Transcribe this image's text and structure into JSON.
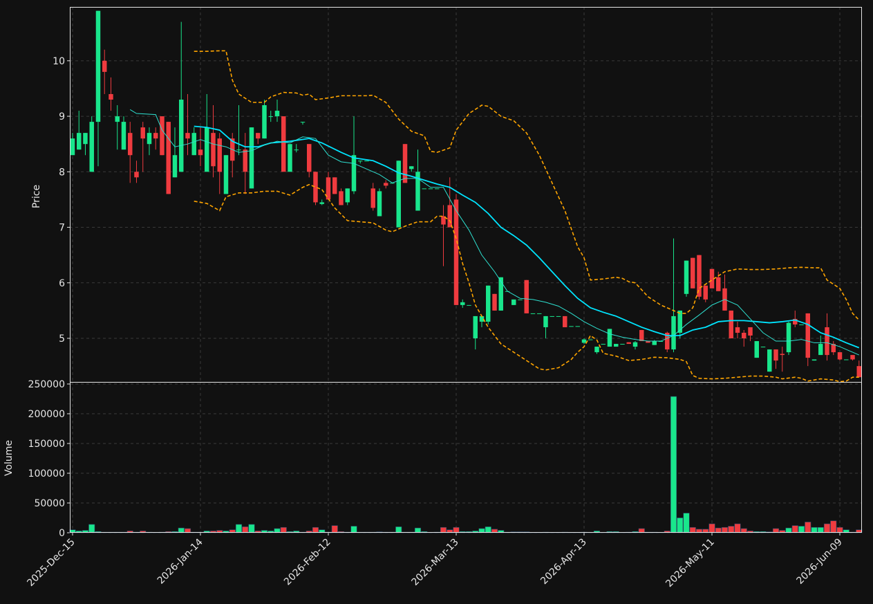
{
  "chart_data": [
    {
      "type": "candlestick",
      "ylabel": "Price",
      "up_color": "#19e68c",
      "down_color": "#ef3b3f",
      "open": [
        8.3,
        8.4,
        8.5,
        8.0,
        8.9,
        10.0,
        9.4,
        8.9,
        8.4,
        8.7,
        8.0,
        8.8,
        8.5,
        8.7,
        9.0,
        8.9,
        7.9,
        8.0,
        8.7,
        8.3,
        8.4,
        8.0,
        8.7,
        8.6,
        7.6,
        8.6,
        8.4,
        8.4,
        7.7,
        8.7,
        8.6,
        9.0,
        9.0,
        9.0,
        8.0,
        8.4,
        8.9,
        8.5,
        8.0,
        7.42,
        7.9,
        7.9,
        7.65,
        7.45,
        7.65,
        8.2,
        8.2,
        7.7,
        7.2,
        7.8,
        7.8,
        7.0,
        8.5,
        8.05,
        7.3,
        7.7,
        7.7,
        7.7,
        7.2,
        7.4,
        7.5,
        5.6,
        5.6,
        5.0,
        5.3,
        5.3,
        5.8,
        5.5,
        5.85,
        5.6,
        5.7,
        6.05,
        5.45,
        5.45,
        5.2,
        5.4,
        5.4,
        5.4,
        5.22,
        5.22,
        4.92,
        4.98,
        4.75,
        4.9,
        4.85,
        4.85,
        4.9,
        4.93,
        4.85,
        5.15,
        4.95,
        4.88,
        4.95,
        5.1,
        4.8,
        5.1,
        5.8,
        6.45,
        6.5,
        5.95,
        6.25,
        6.1,
        5.9,
        5.5,
        5.2,
        5.1,
        5.2,
        4.65,
        4.85,
        4.4,
        4.8,
        4.72,
        4.75,
        5.35,
        5.25,
        5.45,
        4.6,
        4.7,
        5.2,
        4.9,
        4.75,
        4.62,
        4.7,
        4.5
      ],
      "high": [
        8.7,
        9.1,
        8.7,
        9.0,
        10.9,
        10.2,
        9.7,
        9.2,
        9.0,
        8.9,
        8.2,
        8.9,
        8.8,
        8.8,
        9.0,
        8.9,
        8.8,
        10.7,
        9.4,
        8.8,
        8.8,
        9.4,
        9.2,
        8.7,
        8.3,
        8.7,
        9.2,
        8.7,
        8.8,
        8.7,
        9.3,
        9.1,
        9.3,
        9.0,
        8.5,
        8.5,
        8.9,
        8.5,
        8.0,
        7.5,
        8.0,
        7.9,
        7.7,
        7.7,
        9.0,
        8.2,
        8.2,
        7.8,
        7.7,
        7.85,
        7.8,
        8.2,
        8.5,
        8.1,
        8.4,
        7.7,
        7.7,
        7.7,
        7.4,
        7.9,
        7.6,
        5.7,
        5.6,
        5.4,
        5.4,
        5.95,
        5.8,
        6.1,
        5.85,
        5.7,
        5.7,
        6.05,
        5.45,
        5.45,
        5.4,
        5.4,
        5.4,
        5.4,
        5.22,
        5.22,
        5.0,
        4.98,
        4.85,
        4.9,
        5.17,
        4.9,
        4.9,
        4.93,
        4.95,
        5.15,
        4.95,
        4.97,
        4.95,
        5.12,
        6.8,
        5.5,
        6.4,
        6.45,
        6.5,
        5.95,
        6.25,
        6.2,
        6.15,
        5.5,
        5.3,
        5.15,
        5.2,
        4.95,
        4.85,
        4.8,
        4.8,
        4.85,
        5.3,
        5.5,
        5.25,
        5.45,
        4.62,
        5.05,
        5.45,
        4.95,
        4.75,
        4.62,
        4.7,
        4.6
      ],
      "low": [
        8.3,
        8.4,
        8.3,
        8.0,
        8.1,
        9.4,
        9.1,
        8.4,
        8.4,
        7.8,
        7.8,
        8.0,
        8.3,
        8.4,
        8.3,
        7.6,
        7.9,
        8.0,
        8.3,
        8.3,
        8.1,
        8.0,
        7.9,
        7.6,
        7.6,
        7.9,
        8.3,
        7.6,
        7.7,
        8.5,
        8.6,
        8.9,
        8.9,
        8.0,
        8.0,
        8.35,
        8.85,
        7.9,
        7.4,
        7.4,
        7.5,
        7.6,
        7.4,
        7.4,
        7.6,
        8.15,
        8.2,
        7.3,
        7.2,
        7.7,
        7.8,
        7.0,
        7.8,
        8.0,
        7.3,
        7.7,
        7.7,
        7.7,
        6.3,
        7.0,
        5.6,
        5.55,
        5.6,
        4.8,
        5.2,
        5.25,
        5.5,
        5.5,
        5.85,
        5.6,
        5.7,
        5.45,
        5.45,
        5.45,
        5.0,
        5.4,
        5.4,
        5.2,
        5.22,
        5.22,
        4.9,
        4.98,
        4.72,
        4.9,
        4.85,
        4.85,
        4.9,
        4.9,
        4.8,
        4.95,
        4.92,
        4.88,
        4.95,
        4.75,
        4.75,
        5.0,
        5.75,
        5.9,
        5.7,
        5.65,
        5.9,
        5.85,
        5.5,
        5.0,
        5.0,
        4.85,
        4.95,
        4.65,
        4.85,
        4.4,
        4.45,
        4.4,
        4.7,
        5.2,
        5.25,
        4.5,
        4.6,
        4.7,
        4.6,
        4.7,
        4.6,
        4.62,
        4.6,
        4.3
      ],
      "close": [
        8.6,
        8.7,
        8.7,
        8.9,
        10.9,
        9.8,
        9.3,
        9.0,
        8.9,
        8.3,
        7.9,
        8.6,
        8.7,
        8.6,
        8.3,
        7.6,
        8.3,
        9.3,
        8.6,
        8.7,
        8.3,
        8.8,
        8.1,
        8.0,
        8.3,
        8.2,
        8.4,
        8.0,
        8.8,
        8.6,
        9.2,
        9.0,
        9.1,
        8.0,
        8.5,
        8.4,
        8.9,
        8.0,
        7.45,
        7.45,
        7.5,
        7.6,
        7.4,
        7.7,
        8.3,
        8.2,
        8.2,
        7.35,
        7.65,
        7.75,
        7.8,
        8.2,
        7.8,
        8.1,
        8.0,
        7.7,
        7.7,
        7.7,
        7.05,
        7.0,
        5.6,
        5.65,
        5.6,
        5.4,
        5.4,
        5.95,
        5.5,
        6.1,
        5.85,
        5.7,
        5.7,
        5.45,
        5.45,
        5.45,
        5.4,
        5.4,
        5.4,
        5.2,
        5.22,
        5.22,
        4.98,
        4.98,
        4.85,
        4.9,
        5.17,
        4.9,
        4.9,
        4.9,
        4.93,
        4.95,
        4.92,
        4.95,
        4.95,
        4.8,
        5.4,
        5.5,
        6.4,
        5.9,
        5.75,
        5.7,
        5.9,
        5.85,
        5.5,
        5.0,
        5.1,
        5.0,
        5.05,
        4.95,
        4.85,
        4.8,
        4.6,
        4.7,
        5.28,
        5.25,
        5.25,
        4.65,
        4.62,
        4.9,
        4.7,
        4.75,
        4.62,
        4.62,
        4.62,
        4.3
      ],
      "lines": [
        {
          "color": "#00e5ff",
          "style": "bold",
          "x": [
            19,
            21,
            23,
            25,
            27,
            29,
            31,
            34,
            37,
            39,
            42,
            44,
            47,
            49,
            51,
            53,
            55,
            57,
            59,
            61,
            63,
            65,
            67,
            69,
            71,
            73,
            75,
            77,
            79,
            81,
            83,
            85,
            87,
            89,
            91,
            93,
            95,
            97,
            99,
            101,
            103,
            105,
            107,
            109,
            111,
            113,
            115,
            117,
            119,
            121,
            123
          ],
          "values": [
            8.82,
            8.8,
            8.75,
            8.55,
            8.45,
            8.45,
            8.52,
            8.55,
            8.6,
            8.52,
            8.35,
            8.25,
            8.2,
            8.1,
            7.98,
            7.92,
            7.85,
            7.78,
            7.72,
            7.58,
            7.45,
            7.25,
            7.0,
            6.85,
            6.68,
            6.45,
            6.2,
            5.95,
            5.72,
            5.55,
            5.47,
            5.4,
            5.3,
            5.2,
            5.12,
            5.05,
            5.05,
            5.15,
            5.2,
            5.3,
            5.32,
            5.32,
            5.3,
            5.28,
            5.3,
            5.33,
            5.25,
            5.1,
            5.02,
            4.92,
            4.83
          ]
        },
        {
          "color": "#2ee0d0",
          "style": "thin",
          "x": [
            9,
            10,
            13,
            14,
            16,
            18,
            20,
            22,
            24,
            26,
            28,
            30,
            32,
            34,
            36,
            38,
            40,
            42,
            44,
            46,
            48,
            50,
            52,
            54,
            56,
            58,
            60,
            62,
            64,
            66,
            68,
            70,
            72,
            74,
            76,
            78,
            80,
            82,
            84,
            86,
            88,
            90,
            92,
            94,
            96,
            98,
            100,
            102,
            104,
            106,
            108,
            110,
            112,
            114,
            116,
            118,
            120,
            122,
            123
          ],
          "values": [
            9.12,
            9.05,
            9.03,
            8.75,
            8.45,
            8.5,
            8.58,
            8.5,
            8.45,
            8.35,
            8.38,
            8.48,
            8.55,
            8.52,
            8.63,
            8.6,
            8.3,
            8.18,
            8.15,
            8.05,
            7.95,
            7.8,
            7.88,
            7.88,
            7.72,
            7.72,
            7.3,
            6.95,
            6.5,
            6.2,
            5.85,
            5.72,
            5.7,
            5.65,
            5.58,
            5.45,
            5.3,
            5.18,
            5.08,
            5.02,
            4.98,
            4.95,
            4.95,
            5.05,
            5.25,
            5.42,
            5.6,
            5.7,
            5.6,
            5.35,
            5.1,
            4.95,
            4.95,
            4.98,
            4.92,
            4.92,
            4.85,
            4.75,
            4.7
          ]
        },
        {
          "color": "#ffa500",
          "style": "dashed",
          "x": [
            19,
            21,
            23,
            24,
            25,
            26,
            28,
            30,
            31,
            33,
            35,
            36,
            37,
            38,
            40,
            42,
            44,
            46,
            47,
            49,
            51,
            53,
            55,
            56,
            57,
            59,
            60,
            62,
            64,
            65,
            67,
            69,
            71,
            73,
            75,
            77,
            79,
            80,
            81,
            83,
            85,
            86,
            87,
            88,
            90,
            92,
            94,
            95,
            96,
            97,
            98,
            100,
            102,
            104,
            106,
            108,
            110,
            112,
            114,
            116,
            117,
            118,
            120,
            121,
            122,
            123
          ],
          "values": [
            10.17,
            10.17,
            10.18,
            10.18,
            9.65,
            9.4,
            9.25,
            9.25,
            9.35,
            9.43,
            9.42,
            9.38,
            9.4,
            9.3,
            9.33,
            9.37,
            9.37,
            9.37,
            9.38,
            9.25,
            8.95,
            8.73,
            8.65,
            8.37,
            8.35,
            8.43,
            8.75,
            9.05,
            9.2,
            9.18,
            9.0,
            8.92,
            8.7,
            8.3,
            7.8,
            7.3,
            6.65,
            6.45,
            6.05,
            6.07,
            6.1,
            6.08,
            6.02,
            6.0,
            5.75,
            5.6,
            5.5,
            5.45,
            5.45,
            5.55,
            5.9,
            6.05,
            6.2,
            6.25,
            6.24,
            6.24,
            6.25,
            6.27,
            6.28,
            6.27,
            6.27,
            6.05,
            5.9,
            5.7,
            5.45,
            5.33
          ]
        },
        {
          "color": "#ffa500",
          "style": "dashed",
          "x": [
            19,
            21,
            23,
            24,
            26,
            28,
            30,
            32,
            34,
            36,
            37,
            39,
            41,
            43,
            45,
            47,
            49,
            50,
            52,
            54,
            56,
            57,
            58,
            59,
            60,
            61,
            62,
            63,
            65,
            67,
            69,
            71,
            73,
            74,
            76,
            78,
            79,
            80,
            81,
            82,
            83,
            85,
            87,
            89,
            91,
            93,
            95,
            96,
            97,
            98,
            100,
            102,
            104,
            106,
            108,
            110,
            111,
            113,
            114,
            115,
            117,
            119,
            120,
            121,
            122,
            123
          ],
          "values": [
            7.47,
            7.43,
            7.3,
            7.55,
            7.62,
            7.62,
            7.65,
            7.65,
            7.58,
            7.72,
            7.77,
            7.68,
            7.35,
            7.12,
            7.1,
            7.08,
            6.95,
            6.92,
            7.02,
            7.1,
            7.1,
            7.2,
            7.2,
            7.12,
            6.8,
            6.35,
            6.0,
            5.6,
            5.2,
            4.9,
            4.75,
            4.6,
            4.45,
            4.43,
            4.47,
            4.62,
            4.75,
            4.85,
            5.05,
            4.97,
            4.73,
            4.68,
            4.6,
            4.62,
            4.66,
            4.65,
            4.62,
            4.58,
            4.33,
            4.28,
            4.27,
            4.28,
            4.3,
            4.32,
            4.32,
            4.3,
            4.27,
            4.3,
            4.28,
            4.23,
            4.27,
            4.25,
            4.22,
            4.23,
            4.3,
            4.3
          ]
        }
      ],
      "xlim": [
        -0.43,
        123.35
      ],
      "ylim": [
        4.215,
        10.97
      ],
      "yticks": [
        5,
        6,
        7,
        8,
        9,
        10
      ],
      "grid": true
    },
    {
      "type": "bar",
      "ylabel": "Volume",
      "categories": [
        "2025-Dec-15",
        null,
        null,
        null,
        null,
        null,
        null,
        null,
        null,
        null,
        null,
        null,
        null,
        null,
        null,
        null,
        null,
        null,
        null,
        null,
        "2026-Jan-14",
        null,
        null,
        null,
        null,
        null,
        null,
        null,
        null,
        null,
        null,
        null,
        null,
        null,
        null,
        null,
        null,
        null,
        null,
        null,
        "2026-Feb-12",
        null,
        null,
        null,
        null,
        null,
        null,
        null,
        null,
        null,
        null,
        null,
        null,
        null,
        null,
        null,
        null,
        null,
        null,
        null,
        "2026-Mar-13",
        null,
        null,
        null,
        null,
        null,
        null,
        null,
        null,
        null,
        null,
        null,
        null,
        null,
        null,
        null,
        null,
        null,
        null,
        null,
        "2026-Apr-13",
        null,
        null,
        null,
        null,
        null,
        null,
        null,
        null,
        null,
        null,
        null,
        null,
        null,
        null,
        null,
        null,
        null,
        null,
        null,
        "2026-May-11",
        null,
        null,
        null,
        null,
        null,
        null,
        null,
        null,
        null,
        null,
        null,
        null,
        null,
        null,
        null,
        null,
        null,
        null,
        null,
        "2026-Jun-09",
        null,
        null,
        null
      ],
      "values": [
        5000,
        3000,
        4000,
        14000,
        2000,
        1000,
        1000,
        1000,
        1000,
        3000,
        1000,
        3000,
        1000,
        500,
        1000,
        2000,
        2000,
        8000,
        7000,
        1000,
        1000,
        3000,
        3000,
        4000,
        3000,
        5000,
        14000,
        10000,
        14000,
        3000,
        4000,
        3000,
        7000,
        9000,
        2000,
        3000,
        1000,
        3000,
        9000,
        5000,
        1000,
        12000,
        2000,
        1000,
        11000,
        1000,
        1000,
        1000,
        1500,
        1000,
        1000,
        10000,
        1000,
        1000,
        8000,
        2000,
        500,
        1000,
        9000,
        5000,
        9000,
        2000,
        2000,
        3000,
        7000,
        10000,
        6000,
        4000,
        1000,
        1500,
        1500,
        1500,
        500,
        500,
        1000,
        500,
        500,
        1000,
        500,
        500,
        1000,
        500,
        3000,
        500,
        2000,
        2000,
        500,
        1000,
        2000,
        7000,
        1000,
        1000,
        500,
        3000,
        229000,
        25000,
        33000,
        9000,
        6000,
        6000,
        15000,
        8000,
        9000,
        11000,
        15000,
        7000,
        3000,
        2000,
        2000,
        1500,
        7000,
        4000,
        8000,
        12000,
        11000,
        18000,
        9000,
        9000,
        15000,
        20000,
        9000,
        5000,
        1000,
        5000
      ],
      "xlim": [
        -0.43,
        123.35
      ],
      "ylim": [
        0,
        253500
      ],
      "yticks": [
        0,
        50000,
        100000,
        150000,
        200000,
        250000
      ],
      "grid": true
    }
  ]
}
